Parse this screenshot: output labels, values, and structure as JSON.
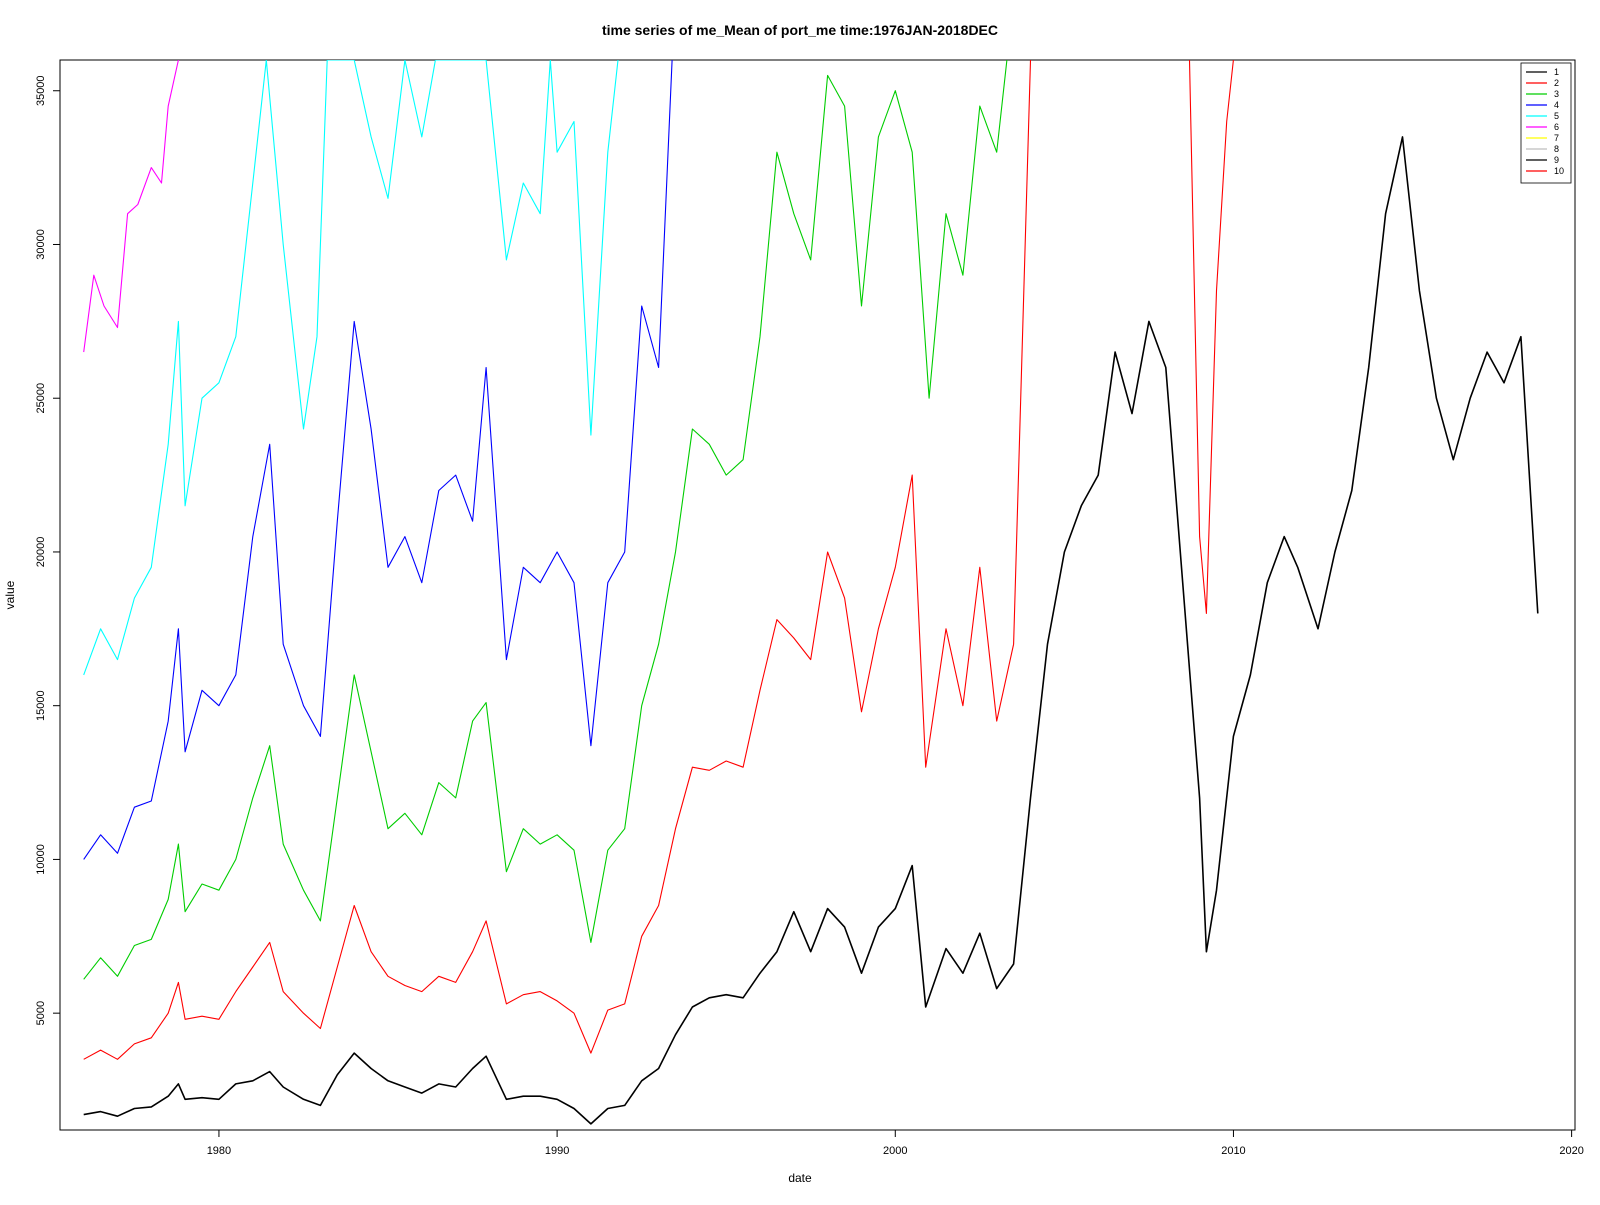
{
  "chart_data": {
    "type": "line",
    "title": "time series of me_Mean of port_me time:1976JAN-2018DEC",
    "xlabel": "date",
    "ylabel": "value",
    "xlim": [
      1975.3,
      2020.1
    ],
    "ylim": [
      1200,
      36000
    ],
    "x_ticks": [
      1980,
      1990,
      2000,
      2010,
      2020
    ],
    "y_ticks": [
      5000,
      10000,
      15000,
      20000,
      25000,
      30000,
      35000
    ],
    "grid": false,
    "legend_position": "top-right",
    "legend": [
      {
        "label": "1",
        "color": "#000000"
      },
      {
        "label": "2",
        "color": "#ff0000"
      },
      {
        "label": "3",
        "color": "#00cd00"
      },
      {
        "label": "4",
        "color": "#0000ff"
      },
      {
        "label": "5",
        "color": "#00ffff"
      },
      {
        "label": "6",
        "color": "#ff00ff"
      },
      {
        "label": "7",
        "color": "#ffff00"
      },
      {
        "label": "8",
        "color": "#bebebe"
      },
      {
        "label": "9",
        "color": "#000000"
      },
      {
        "label": "10",
        "color": "#ff0000"
      }
    ],
    "series": [
      {
        "label": "1",
        "color": "#000000",
        "x": [
          1976.0,
          1976.5,
          1977.0,
          1977.5,
          1978.0,
          1978.5,
          1978.8,
          1979.0,
          1979.5,
          1980.0,
          1980.5,
          1981.0,
          1981.5,
          1981.9,
          1982.5,
          1983.0,
          1983.5,
          1984.0,
          1984.5,
          1985.0,
          1985.5,
          1986.0,
          1986.5,
          1987.0,
          1987.5,
          1987.9,
          1988.5,
          1989.0,
          1989.5,
          1990.0,
          1990.5,
          1991.0,
          1991.5,
          1992.0,
          1992.5,
          1993.0,
          1993.5,
          1994.0,
          1994.5,
          1995.0,
          1995.5,
          1996.0,
          1996.5,
          1997.0,
          1997.5,
          1998.0,
          1998.5,
          1999.0,
          1999.5,
          2000.0,
          2000.5,
          2000.9,
          2001.5,
          2002.0,
          2002.5,
          2003.0,
          2003.5,
          2004.0,
          2004.5,
          2005.0,
          2005.5,
          2006.0,
          2006.5,
          2007.0,
          2007.5,
          2008.0,
          2008.5,
          2009.0,
          2009.2,
          2009.5,
          2010.0,
          2010.5,
          2011.0,
          2011.5,
          2011.9,
          2012.5,
          2013.0,
          2013.5,
          2014.0,
          2014.5,
          2015.0,
          2015.5,
          2016.0,
          2016.5,
          2017.0,
          2017.5,
          2018.0,
          2018.5,
          2019.0
        ],
        "y": [
          1700,
          1800,
          1650,
          1900,
          1950,
          2300,
          2700,
          2200,
          2250,
          2200,
          2700,
          2800,
          3100,
          2600,
          2200,
          2000,
          3000,
          3700,
          3200,
          2800,
          2600,
          2400,
          2700,
          2600,
          3200,
          3600,
          2200,
          2300,
          2300,
          2200,
          1900,
          1400,
          1900,
          2000,
          2800,
          3200,
          4300,
          5200,
          5500,
          5600,
          5500,
          6300,
          7000,
          8300,
          7000,
          8400,
          7800,
          6300,
          7800,
          8400,
          9800,
          5200,
          7100,
          6300,
          7600,
          5800,
          6600,
          12000,
          17000,
          20000,
          21500,
          22500,
          26500,
          24500,
          27500,
          26000,
          19000,
          12000,
          7000,
          9000,
          14000,
          16000,
          19000,
          20500,
          19500,
          17500,
          20000,
          22000,
          26000,
          31000,
          33500,
          28500,
          25000,
          23000,
          25000,
          26500,
          25500,
          27000,
          18000
        ]
      },
      {
        "label": "2",
        "color": "#ff0000",
        "x": [
          1976.0,
          1976.5,
          1977.0,
          1977.5,
          1978.0,
          1978.5,
          1978.8,
          1979.0,
          1979.5,
          1980.0,
          1980.5,
          1981.0,
          1981.5,
          1981.9,
          1982.5,
          1983.0,
          1983.5,
          1984.0,
          1984.5,
          1985.0,
          1985.5,
          1986.0,
          1986.5,
          1987.0,
          1987.5,
          1987.9,
          1988.5,
          1989.0,
          1989.5,
          1990.0,
          1990.5,
          1991.0,
          1991.5,
          1992.0,
          1992.5,
          1993.0,
          1993.5,
          1994.0,
          1994.5,
          1995.0,
          1995.5,
          1996.0,
          1996.5,
          1997.0,
          1997.5,
          1998.0,
          1998.5,
          1999.0,
          1999.5,
          2000.0,
          2000.5,
          2000.9,
          2001.5,
          2002.0,
          2002.5,
          2003.0,
          2003.5,
          2004.0
        ],
        "y": [
          3500,
          3800,
          3500,
          4000,
          4200,
          5000,
          6000,
          4800,
          4900,
          4800,
          5700,
          6500,
          7300,
          5700,
          5000,
          4500,
          6500,
          8500,
          7000,
          6200,
          5900,
          5700,
          6200,
          6000,
          7000,
          8000,
          5300,
          5600,
          5700,
          5400,
          5000,
          3700,
          5100,
          5300,
          7500,
          8500,
          11000,
          13000,
          12900,
          13200,
          13000,
          15500,
          17800,
          17200,
          16500,
          20000,
          18500,
          14800,
          17500,
          19500,
          22500,
          13000,
          17500,
          15000,
          19500,
          14500,
          17000,
          36000
        ]
      },
      {
        "label": "3",
        "color": "#00cd00",
        "x": [
          1976.0,
          1976.5,
          1977.0,
          1977.5,
          1978.0,
          1978.5,
          1978.8,
          1979.0,
          1979.5,
          1980.0,
          1980.5,
          1981.0,
          1981.5,
          1981.9,
          1982.5,
          1983.0,
          1983.5,
          1984.0,
          1984.5,
          1985.0,
          1985.5,
          1986.0,
          1986.5,
          1987.0,
          1987.5,
          1987.9,
          1988.5,
          1989.0,
          1989.5,
          1990.0,
          1990.5,
          1991.0,
          1991.5,
          1992.0,
          1992.5,
          1993.0,
          1993.5,
          1994.0,
          1994.5,
          1995.0,
          1995.5,
          1996.0,
          1996.5,
          1997.0,
          1997.5,
          1998.0,
          1998.5,
          1999.0,
          1999.5,
          2000.0,
          2000.5,
          2001.0,
          2001.5,
          2002.0,
          2002.5,
          2003.0,
          2003.3
        ],
        "y": [
          6100,
          6800,
          6200,
          7200,
          7400,
          8700,
          10500,
          8300,
          9200,
          9000,
          10000,
          12000,
          13700,
          10500,
          9000,
          8000,
          12000,
          16000,
          13500,
          11000,
          11500,
          10800,
          12500,
          12000,
          14500,
          15100,
          9600,
          11000,
          10500,
          10800,
          10300,
          7300,
          10300,
          11000,
          15000,
          17000,
          20000,
          24000,
          23500,
          22500,
          23000,
          27000,
          33000,
          31000,
          29500,
          35500,
          34500,
          28000,
          33500,
          35000,
          33000,
          25000,
          31000,
          29000,
          34500,
          33000,
          36000
        ]
      },
      {
        "label": "4",
        "color": "#0000ff",
        "x": [
          1976.0,
          1976.5,
          1977.0,
          1977.5,
          1978.0,
          1978.5,
          1978.8,
          1979.0,
          1979.5,
          1980.0,
          1980.5,
          1981.0,
          1981.5,
          1981.9,
          1982.5,
          1983.0,
          1983.5,
          1984.0,
          1984.5,
          1985.0,
          1985.5,
          1986.0,
          1986.5,
          1987.0,
          1987.5,
          1987.9,
          1988.5,
          1989.0,
          1989.5,
          1990.0,
          1990.5,
          1991.0,
          1991.5,
          1992.0,
          1992.5,
          1993.0,
          1993.4
        ],
        "y": [
          10000,
          10800,
          10200,
          11700,
          11900,
          14500,
          17500,
          13500,
          15500,
          15000,
          16000,
          20500,
          23500,
          17000,
          15000,
          14000,
          21000,
          27500,
          24000,
          19500,
          20500,
          19000,
          22000,
          22500,
          21000,
          26000,
          16500,
          19500,
          19000,
          20000,
          19000,
          13700,
          19000,
          20000,
          28000,
          26000,
          36000
        ]
      },
      {
        "label": "5",
        "color": "#00ffff",
        "x": [
          1976.0,
          1976.5,
          1977.0,
          1977.5,
          1978.0,
          1978.5,
          1978.8,
          1979.0,
          1979.5,
          1980.0,
          1980.5,
          1981.0,
          1981.4,
          1981.9,
          1982.5,
          1982.9,
          1983.2,
          1983.5,
          1984.0,
          1984.5,
          1985.0,
          1985.5,
          1986.0,
          1986.4,
          1987.0,
          1987.5,
          1987.9,
          1988.5,
          1989.0,
          1989.5,
          1989.8,
          1990.0,
          1990.5,
          1991.0,
          1991.5,
          1991.8
        ],
        "y": [
          16000,
          17500,
          16500,
          18500,
          19500,
          23500,
          27500,
          21500,
          25000,
          25500,
          27000,
          32000,
          36000,
          30000,
          24000,
          27000,
          36000,
          36000,
          36000,
          33500,
          31500,
          36000,
          33500,
          36000,
          36000,
          36000,
          36000,
          29500,
          32000,
          31000,
          36000,
          33000,
          34000,
          23800,
          33000,
          36000
        ]
      },
      {
        "label": "6",
        "color": "#ff00ff",
        "x": [
          1976.0,
          1976.3,
          1976.6,
          1977.0,
          1977.3,
          1977.6,
          1978.0,
          1978.3,
          1978.5,
          1978.8
        ],
        "y": [
          26500,
          29000,
          28000,
          27300,
          31000,
          31300,
          32500,
          32000,
          34500,
          36000
        ]
      },
      {
        "label": "10",
        "color": "#ff0000",
        "x": [
          2008.7,
          2009.0,
          2009.2,
          2009.5,
          2009.8,
          2010.0
        ],
        "y": [
          36000,
          20500,
          18000,
          28500,
          34000,
          36000
        ]
      }
    ]
  }
}
